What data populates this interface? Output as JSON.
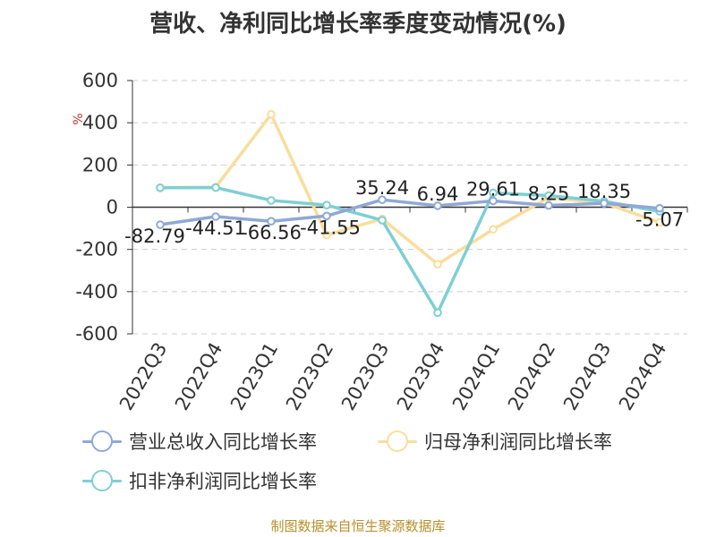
{
  "title": "营收、净利同比增长率季度变动情况(%)",
  "source": "制图数据来自恒生聚源数据库",
  "chart_data": {
    "type": "line",
    "title": "营收、净利同比增长率季度变动情况(%)",
    "ylabel": "%",
    "ylim": [
      -600,
      600
    ],
    "yticks": [
      600,
      400,
      200,
      0,
      -200,
      -400,
      -600
    ],
    "categories": [
      "2022Q3",
      "2022Q4",
      "2023Q1",
      "2023Q2",
      "2023Q3",
      "2023Q4",
      "2024Q1",
      "2024Q2",
      "2024Q3",
      "2024Q4"
    ],
    "grid": true,
    "legend_position": "bottom",
    "series": [
      {
        "name": "营业总收入同比增长率",
        "color": "#8fa8d6",
        "values": [
          -82.79,
          -44.51,
          -66.56,
          -41.55,
          35.24,
          6.94,
          29.61,
          8.25,
          18.35,
          -5.07
        ],
        "labels": [
          "-82.79",
          "-44.51",
          "-66.56",
          "-41.55",
          "35.24",
          "6.94",
          "29.61",
          "8.25",
          "18.35",
          "-5.07"
        ]
      },
      {
        "name": "归母净利润同比增长率",
        "color": "#fadd9c",
        "values": [
          92,
          95,
          440,
          -132,
          -55,
          -270,
          -105,
          45,
          20,
          -72
        ]
      },
      {
        "name": "扣非净利润同比增长率",
        "color": "#7ecfd3",
        "values": [
          92,
          93,
          32,
          10,
          -62,
          -500,
          68,
          55,
          28,
          -20
        ]
      }
    ]
  }
}
